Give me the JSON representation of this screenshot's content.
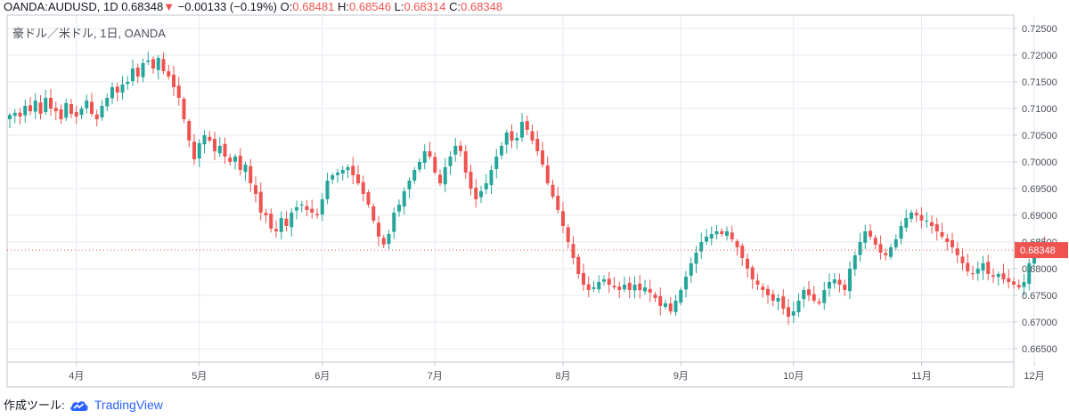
{
  "header": {
    "symbol": "OANDA:AUDUSD, 1D",
    "last": "0.68348",
    "change_arrow": "▼",
    "change": "−0.00133 (−0.19%)",
    "open_label": "O:",
    "open": "0.68481",
    "high_label": "H:",
    "high": "0.68546",
    "low_label": "L:",
    "low": "0.68314",
    "close_label": "C:",
    "close": "0.68348"
  },
  "legend": {
    "title": "豪ドル／米ドル, 1日, OANDA"
  },
  "footer": {
    "made_with": "作成ツール:",
    "brand": "TradingView"
  },
  "colors": {
    "up": "#26a69a",
    "down": "#ef5350",
    "grid": "#e6ebf2",
    "axis": "#787b86"
  },
  "chart_data": {
    "type": "candlestick",
    "title": "豪ドル／米ドル, 1日, OANDA",
    "ylim": [
      0.6625,
      0.7275
    ],
    "y_ticks": [
      "0.72500",
      "0.72000",
      "0.71500",
      "0.71000",
      "0.70500",
      "0.70000",
      "0.69500",
      "0.69000",
      "0.68500",
      "0.68000",
      "0.67500",
      "0.67000",
      "0.66500"
    ],
    "x_ticks": [
      {
        "label": "4月",
        "index": 13
      },
      {
        "label": "5月",
        "index": 37
      },
      {
        "label": "6月",
        "index": 61
      },
      {
        "label": "7月",
        "index": 83
      },
      {
        "label": "8月",
        "index": 108
      },
      {
        "label": "9月",
        "index": 131
      },
      {
        "label": "10月",
        "index": 153
      },
      {
        "label": "11月",
        "index": 178
      },
      {
        "label": "12月",
        "index": 200
      }
    ],
    "last_price": "0.68348",
    "close_path": [
      0.7088,
      0.7092,
      0.7085,
      0.7105,
      0.7095,
      0.7115,
      0.709,
      0.712,
      0.71,
      0.7095,
      0.708,
      0.711,
      0.709,
      0.7085,
      0.71,
      0.7115,
      0.709,
      0.708,
      0.7105,
      0.712,
      0.714,
      0.713,
      0.7145,
      0.715,
      0.7175,
      0.716,
      0.7185,
      0.719,
      0.7175,
      0.7195,
      0.717,
      0.716,
      0.714,
      0.712,
      0.708,
      0.704,
      0.7005,
      0.7035,
      0.705,
      0.704,
      0.702,
      0.703,
      0.701,
      0.7,
      0.701,
      0.6985,
      0.6995,
      0.696,
      0.694,
      0.6905,
      0.69,
      0.6875,
      0.687,
      0.6895,
      0.688,
      0.6905,
      0.6915,
      0.692,
      0.691,
      0.6905,
      0.69,
      0.693,
      0.6965,
      0.6975,
      0.698,
      0.6985,
      0.699,
      0.6975,
      0.696,
      0.694,
      0.692,
      0.689,
      0.686,
      0.6845,
      0.6865,
      0.6905,
      0.692,
      0.6945,
      0.6965,
      0.6985,
      0.7,
      0.702,
      0.701,
      0.698,
      0.696,
      0.699,
      0.701,
      0.703,
      0.702,
      0.698,
      0.695,
      0.693,
      0.6945,
      0.696,
      0.6985,
      0.701,
      0.703,
      0.7055,
      0.704,
      0.7045,
      0.7075,
      0.706,
      0.704,
      0.702,
      0.6995,
      0.696,
      0.6935,
      0.691,
      0.688,
      0.685,
      0.682,
      0.679,
      0.677,
      0.676,
      0.6765,
      0.6775,
      0.678,
      0.677,
      0.6765,
      0.676,
      0.677,
      0.676,
      0.677,
      0.676,
      0.6765,
      0.6755,
      0.6745,
      0.673,
      0.6735,
      0.672,
      0.674,
      0.676,
      0.6785,
      0.681,
      0.683,
      0.685,
      0.686,
      0.6865,
      0.687,
      0.6865,
      0.687,
      0.6855,
      0.684,
      0.682,
      0.68,
      0.678,
      0.677,
      0.676,
      0.675,
      0.674,
      0.6745,
      0.6725,
      0.671,
      0.672,
      0.674,
      0.676,
      0.675,
      0.674,
      0.6735,
      0.676,
      0.6775,
      0.678,
      0.677,
      0.676,
      0.68,
      0.6825,
      0.685,
      0.687,
      0.686,
      0.6845,
      0.683,
      0.6825,
      0.684,
      0.6855,
      0.688,
      0.6895,
      0.6905,
      0.69,
      0.689,
      0.689,
      0.688,
      0.687,
      0.686,
      0.685,
      0.684,
      0.6825,
      0.681,
      0.6795,
      0.679,
      0.68,
      0.681,
      0.679,
      0.6785,
      0.679,
      0.678,
      0.6775,
      0.677,
      0.6765,
      0.6775,
      0.681,
      0.684,
      0.6848,
      0.6835
    ]
  }
}
